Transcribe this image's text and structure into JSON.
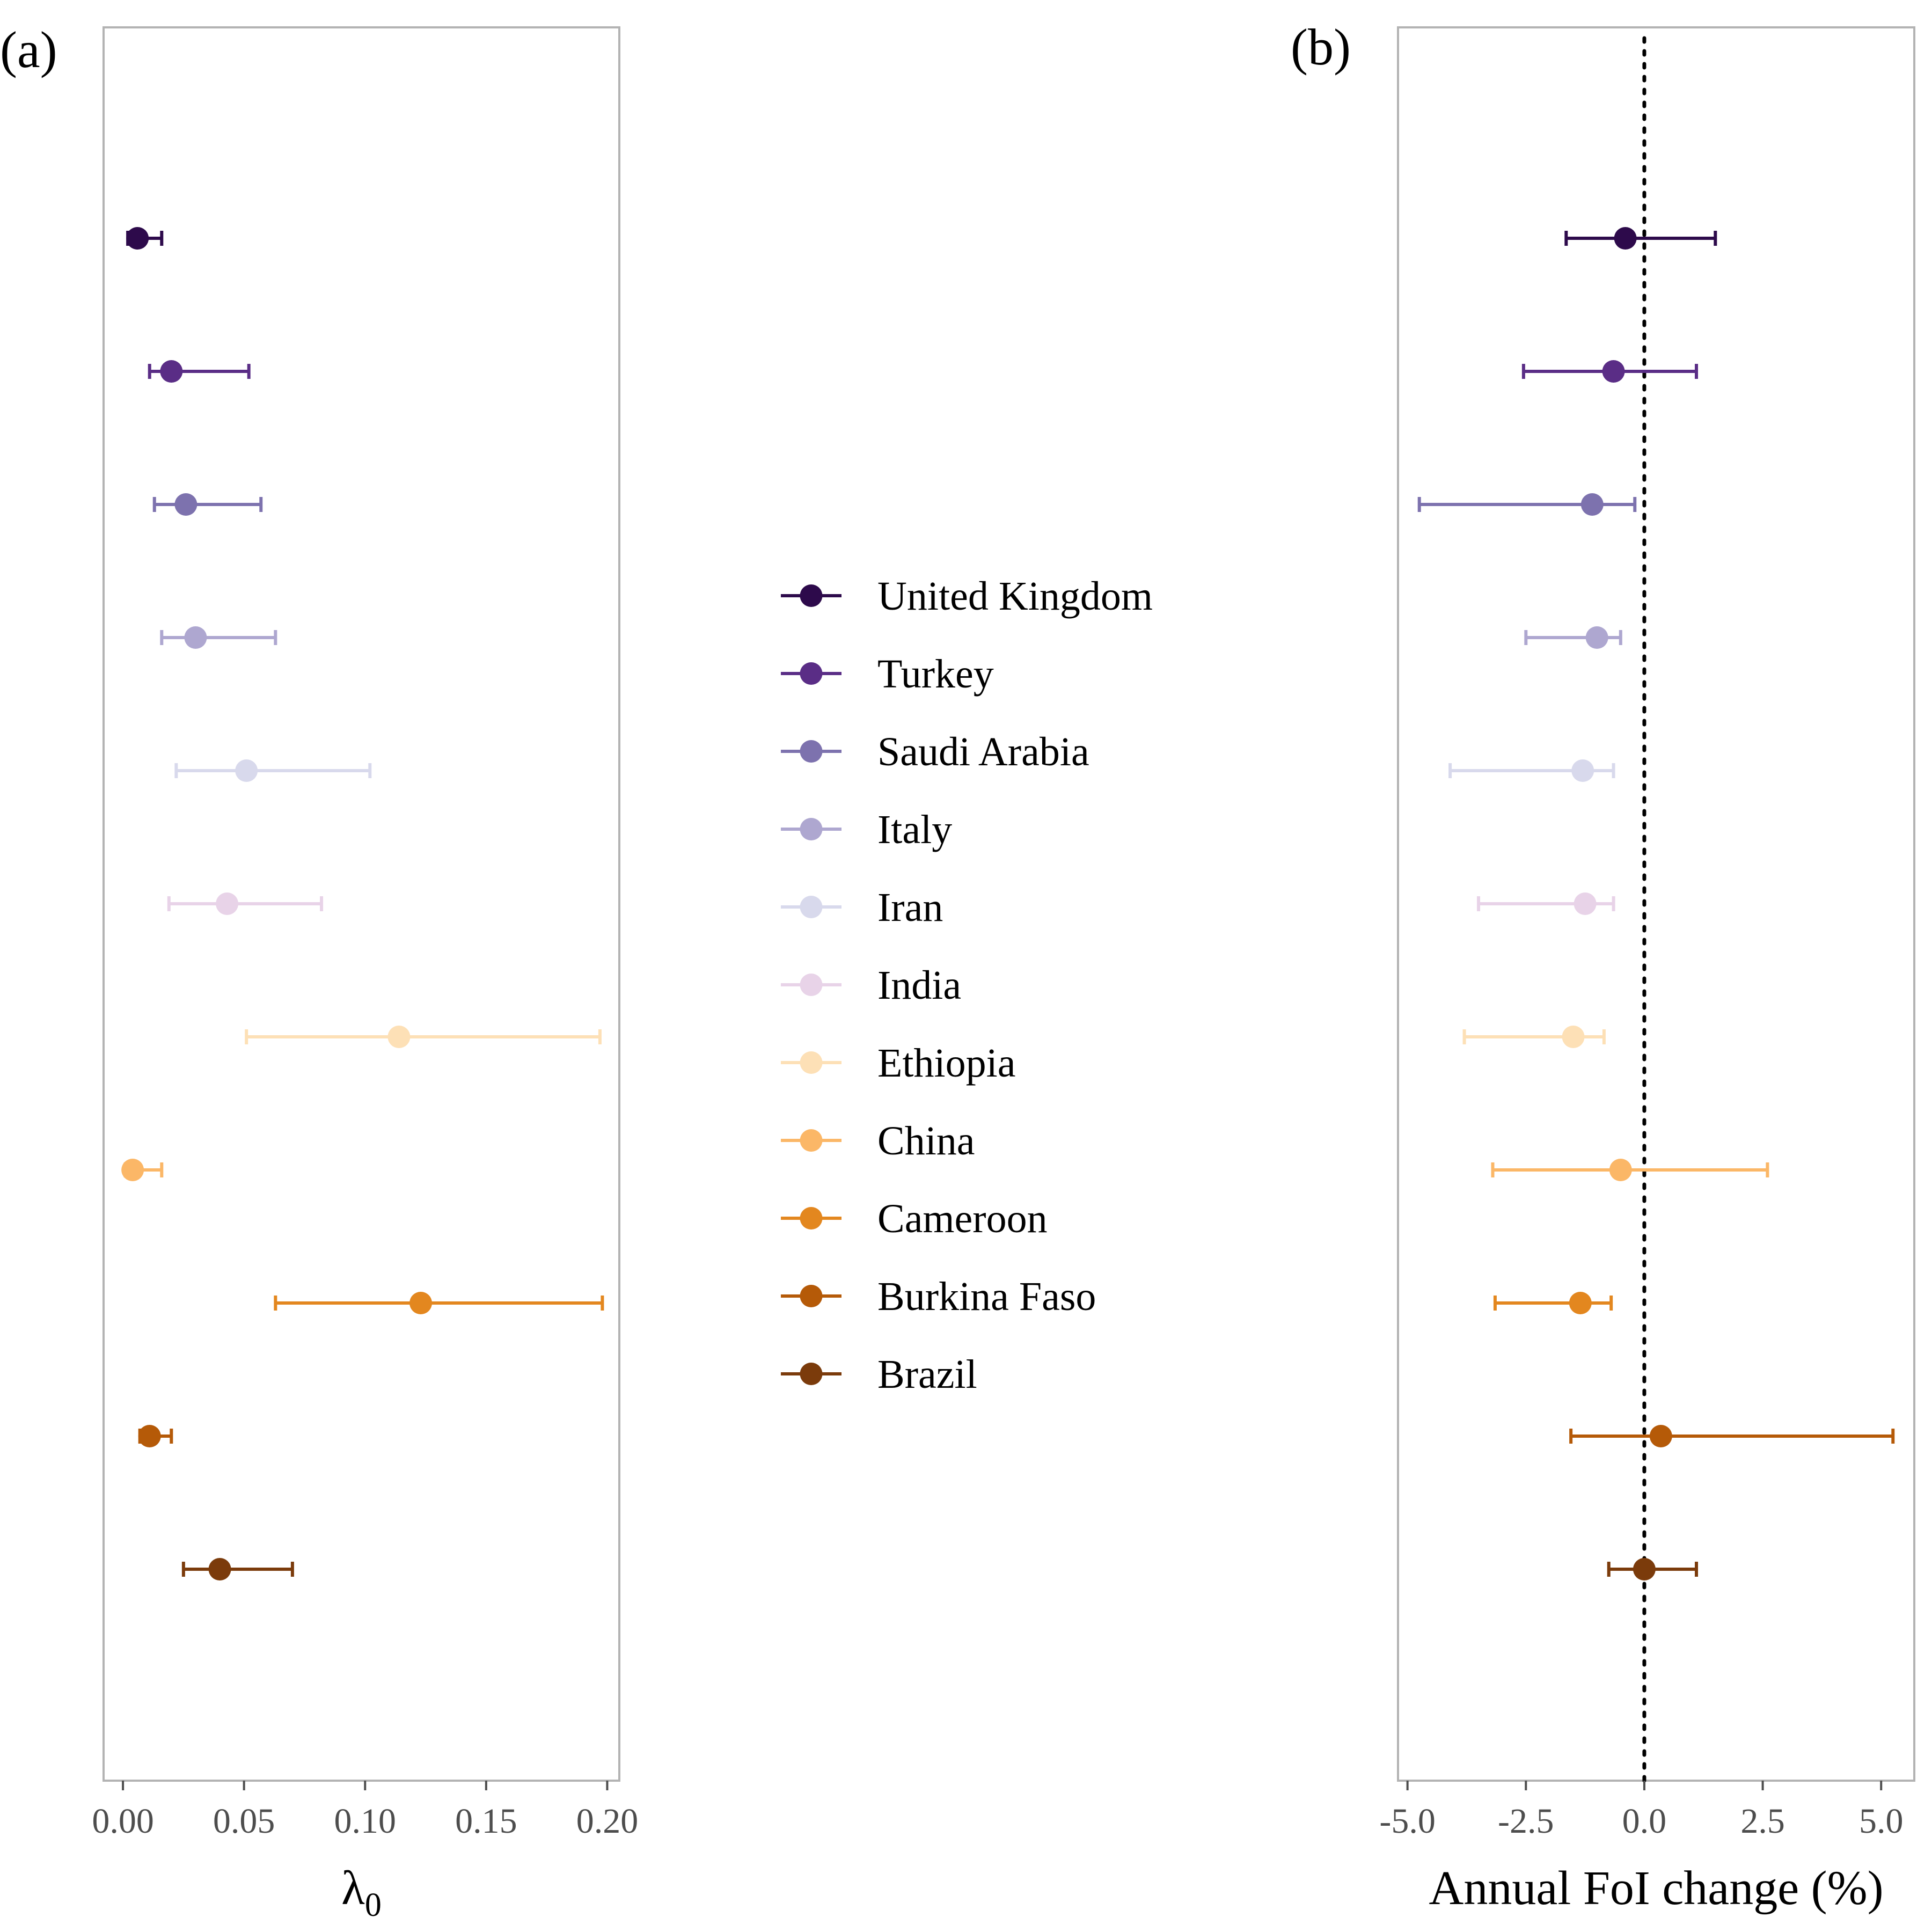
{
  "colors": {
    "United Kingdom": "#2d0a4b",
    "Turkey": "#5a2d86",
    "Saudi Arabia": "#7d72ae",
    "Italy": "#aea7d0",
    "Iran": "#d8d9ec",
    "India": "#e8d3e8",
    "Ethiopia": "#fde0b6",
    "China": "#fbb767",
    "Cameroon": "#e3871f",
    "Burkina Faso": "#b55a08",
    "Brazil": "#7b3b0b"
  },
  "legend": {
    "items": [
      "United Kingdom",
      "Turkey",
      "Saudi Arabia",
      "Italy",
      "Iran",
      "India",
      "Ethiopia",
      "China",
      "Cameroon",
      "Burkina Faso",
      "Brazil"
    ]
  },
  "chart_data": [
    {
      "type": "scatter",
      "panel_label": "(a)",
      "xlabel_main": "λ",
      "xlabel_sub": "0",
      "ylabel": "",
      "xlim": [
        -0.008,
        0.205
      ],
      "xticks": [
        "0.00",
        "0.05",
        "0.10",
        "0.15",
        "0.20"
      ],
      "xtick_values": [
        0.0,
        0.05,
        0.1,
        0.15,
        0.2
      ],
      "grid": false,
      "reference_line": null,
      "points": [
        {
          "country": "United Kingdom",
          "value": 0.006,
          "lower": 0.002,
          "upper": 0.016
        },
        {
          "country": "Turkey",
          "value": 0.02,
          "lower": 0.011,
          "upper": 0.052
        },
        {
          "country": "Saudi Arabia",
          "value": 0.026,
          "lower": 0.013,
          "upper": 0.057
        },
        {
          "country": "Italy",
          "value": 0.03,
          "lower": 0.016,
          "upper": 0.063
        },
        {
          "country": "Iran",
          "value": 0.051,
          "lower": 0.022,
          "upper": 0.102
        },
        {
          "country": "India",
          "value": 0.043,
          "lower": 0.019,
          "upper": 0.082
        },
        {
          "country": "Ethiopia",
          "value": 0.114,
          "lower": 0.051,
          "upper": 0.197
        },
        {
          "country": "China",
          "value": 0.004,
          "lower": 0.001,
          "upper": 0.016
        },
        {
          "country": "Cameroon",
          "value": 0.123,
          "lower": 0.063,
          "upper": 0.198
        },
        {
          "country": "Burkina Faso",
          "value": 0.011,
          "lower": 0.007,
          "upper": 0.02
        },
        {
          "country": "Brazil",
          "value": 0.04,
          "lower": 0.025,
          "upper": 0.07
        }
      ]
    },
    {
      "type": "scatter",
      "panel_label": "(b)",
      "xlabel_main": "Annual FoI change (%)",
      "xlabel_sub": "",
      "ylabel": "",
      "xlim": [
        -5.2,
        5.7
      ],
      "xticks": [
        "-5.0",
        "-2.5",
        "0.0",
        "2.5",
        "5.0"
      ],
      "xtick_values": [
        -5.0,
        -2.5,
        0.0,
        2.5,
        5.0
      ],
      "grid": false,
      "reference_line": 0.0,
      "points": [
        {
          "country": "United Kingdom",
          "value": -0.4,
          "lower": -1.65,
          "upper": 1.5
        },
        {
          "country": "Turkey",
          "value": -0.65,
          "lower": -2.55,
          "upper": 1.1
        },
        {
          "country": "Saudi Arabia",
          "value": -1.1,
          "lower": -4.75,
          "upper": -0.2
        },
        {
          "country": "Italy",
          "value": -1.0,
          "lower": -2.5,
          "upper": -0.5
        },
        {
          "country": "Iran",
          "value": -1.3,
          "lower": -4.1,
          "upper": -0.65
        },
        {
          "country": "India",
          "value": -1.25,
          "lower": -3.5,
          "upper": -0.65
        },
        {
          "country": "Ethiopia",
          "value": -1.5,
          "lower": -3.8,
          "upper": -0.85
        },
        {
          "country": "China",
          "value": -0.5,
          "lower": -3.2,
          "upper": 2.6
        },
        {
          "country": "Cameroon",
          "value": -1.35,
          "lower": -3.15,
          "upper": -0.7
        },
        {
          "country": "Burkina Faso",
          "value": 0.35,
          "lower": -1.55,
          "upper": 5.25
        },
        {
          "country": "Brazil",
          "value": 0.0,
          "lower": -0.75,
          "upper": 1.1
        }
      ]
    }
  ]
}
